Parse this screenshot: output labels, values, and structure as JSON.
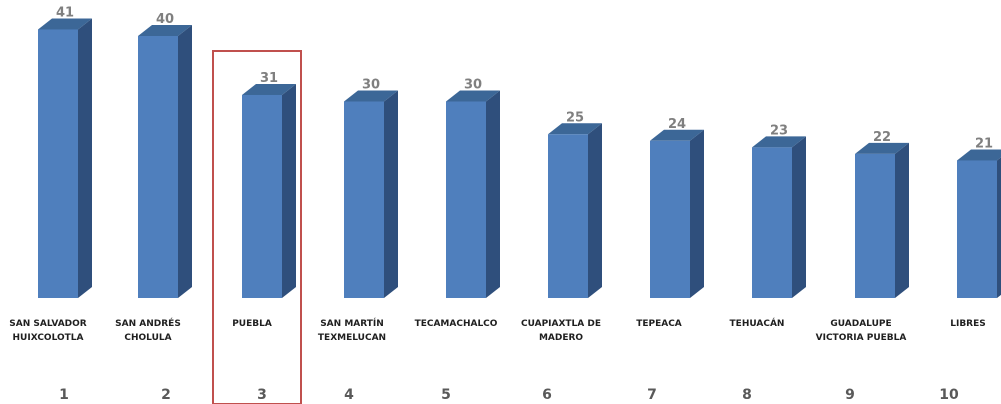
{
  "chart_data": {
    "type": "bar",
    "categories": [
      "SAN SALVADOR HUIXCOLOTLA",
      "SAN ANDRÉS CHOLULA",
      "PUEBLA",
      "SAN MARTÍN TEXMELUCAN",
      "TECAMACHALCO",
      "CUAPIAXTLA DE MADERO",
      "TEPEACA",
      "TEHUACÁN",
      "GUADALUPE VICTORIA PUEBLA",
      "LIBRES"
    ],
    "category_lines": [
      [
        "SAN SALVADOR",
        "HUIXCOLOTLA"
      ],
      [
        "SAN ANDRÉS",
        "CHOLULA"
      ],
      [
        "PUEBLA"
      ],
      [
        "SAN MARTÍN",
        "TEXMELUCAN"
      ],
      [
        "TECAMACHALCO"
      ],
      [
        "CUAPIAXTLA DE",
        "MADERO"
      ],
      [
        "TEPEACA"
      ],
      [
        "TEHUACÁN"
      ],
      [
        "GUADALUPE",
        "VICTORIA PUEBLA"
      ],
      [
        "LIBRES"
      ]
    ],
    "values": [
      41,
      40,
      31,
      30,
      30,
      25,
      24,
      23,
      22,
      21
    ],
    "ranks": [
      "1",
      "2",
      "3",
      "4",
      "5",
      "6",
      "7",
      "8",
      "9",
      "10"
    ],
    "highlighted_category": "PUEBLA",
    "style": "3d-column",
    "grid": false,
    "legend": "none",
    "colors": {
      "bar_front": "#4F7FBD",
      "bar_top": "#3C6797",
      "bar_side": "#2F4F7C",
      "highlight_box": "#C0504D",
      "value_text": "#7F7F7F",
      "category_text": "#1F1F1F",
      "rank_text": "#595959"
    }
  }
}
